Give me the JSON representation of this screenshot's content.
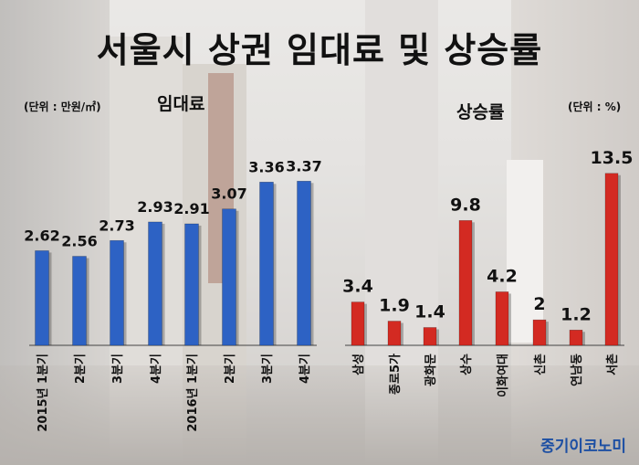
{
  "title": "서울시 상권 임대료 및 상승률",
  "rent_unit": "(단위 : 만원/㎡)",
  "rate_unit": "(단위 : %)",
  "rent_label": "임대료",
  "rate_label": "상승률",
  "brand": "중기이코노미",
  "colors": {
    "rent_bar": "#2d62c4",
    "rate_bar": "#d32a22",
    "title": "#111111",
    "brand": "#1d4fa3"
  },
  "chart_data": [
    {
      "type": "bar",
      "title": "임대료",
      "ylabel": "(단위 : 만원/㎡)",
      "categories": [
        "2015년 1분기",
        "2분기",
        "3분기",
        "4분기",
        "2016년 1분기",
        "2분기",
        "3분기",
        "4분기"
      ],
      "values": [
        2.62,
        2.56,
        2.73,
        2.93,
        2.91,
        3.07,
        3.36,
        3.37
      ],
      "value_labels": [
        "2.62",
        "2.56",
        "2.73",
        "2.93",
        "2.91",
        "3.07",
        "3.36",
        "3.37"
      ],
      "ylim": [
        1.6,
        3.55
      ],
      "color": "#2d62c4",
      "grid": false
    },
    {
      "type": "bar",
      "title": "상승률",
      "ylabel": "(단위 : %)",
      "categories": [
        "삼성",
        "종로5가",
        "광화문",
        "상수",
        "이화여대",
        "신촌",
        "연남동",
        "서촌"
      ],
      "values": [
        3.4,
        1.9,
        1.4,
        9.8,
        4.2,
        2,
        1.2,
        13.5
      ],
      "value_labels": [
        "3.4",
        "1.9",
        "1.4",
        "9.8",
        "4.2",
        "2",
        "1.2",
        "13.5"
      ],
      "ylim": [
        0,
        14.2
      ],
      "color": "#d32a22",
      "grid": false
    }
  ]
}
